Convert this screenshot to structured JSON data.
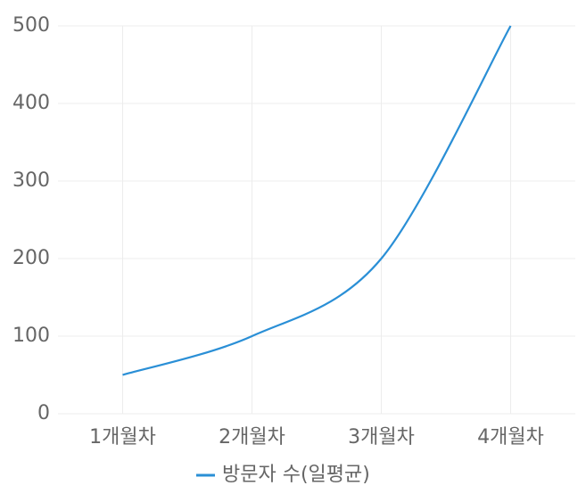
{
  "chart_data": {
    "type": "line",
    "categories": [
      "1개월차",
      "2개월차",
      "3개월차",
      "4개월차"
    ],
    "series": [
      {
        "name": "방문자 수(일평균)",
        "color": "#2a8fd6",
        "values": [
          50,
          100,
          200,
          500
        ]
      }
    ],
    "ylim": [
      0,
      500
    ],
    "yticks": [
      0,
      100,
      200,
      300,
      400,
      500
    ],
    "grid": true,
    "legend": "bottom"
  }
}
